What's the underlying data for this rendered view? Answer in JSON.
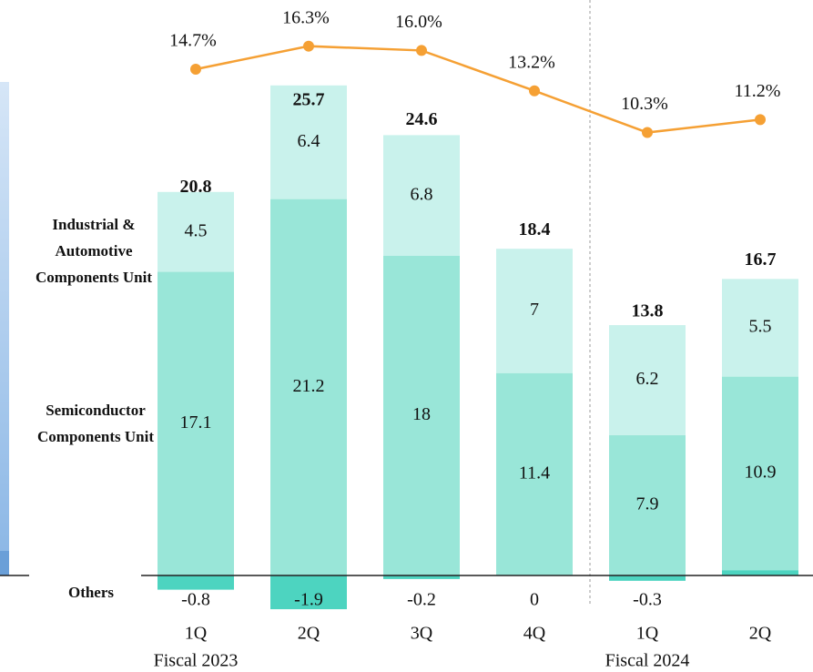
{
  "chart_data": {
    "type": "bar",
    "categories": [
      "1Q",
      "2Q",
      "3Q",
      "4Q",
      "1Q",
      "2Q"
    ],
    "groups": [
      {
        "label": "Fiscal 2023",
        "start": 0
      },
      {
        "label": "Fiscal 2024",
        "start": 4
      }
    ],
    "series": [
      {
        "name": "Others",
        "color": "#4dd4c0",
        "values": [
          -0.8,
          -1.9,
          -0.2,
          0.0,
          -0.3,
          0.3
        ]
      },
      {
        "name": "Semiconductor Components Unit",
        "color": "#99e6d8",
        "values": [
          17.1,
          21.2,
          18.0,
          11.4,
          7.9,
          10.9
        ]
      },
      {
        "name": "Industrial & Automotive Components Unit",
        "color": "#c9f2ec",
        "values": [
          4.5,
          6.4,
          6.8,
          7.0,
          6.2,
          5.5
        ]
      },
      {
        "type": "line",
        "axis": "y2",
        "color": "#f5a034",
        "values": [
          14.7,
          16.3,
          16.0,
          13.2,
          10.3,
          11.2
        ],
        "value_labels": [
          "14.7%",
          "16.3%",
          "16.0%",
          "13.2%",
          "10.3%",
          "11.2%"
        ]
      }
    ],
    "totals": [
      20.8,
      25.7,
      24.6,
      18.4,
      13.8,
      16.7
    ],
    "ylim": [
      -4,
      32
    ],
    "y2lim": [
      -25.4,
      19
    ]
  }
}
